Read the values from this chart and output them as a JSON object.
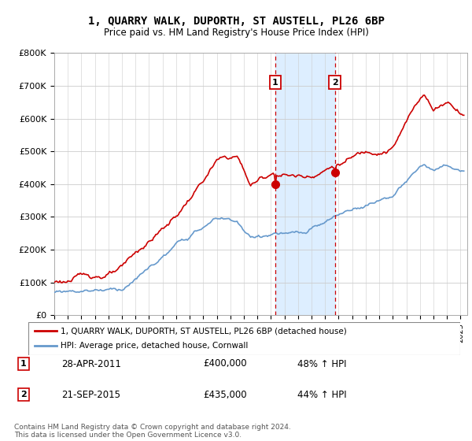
{
  "title": "1, QUARRY WALK, DUPORTH, ST AUSTELL, PL26 6BP",
  "subtitle": "Price paid vs. HM Land Registry's House Price Index (HPI)",
  "ylabel_ticks": [
    "£0",
    "£100K",
    "£200K",
    "£300K",
    "£400K",
    "£500K",
    "£600K",
    "£700K",
    "£800K"
  ],
  "ylim": [
    0,
    800000
  ],
  "xlim_start": 1995.0,
  "xlim_end": 2025.5,
  "legend_line1": "1, QUARRY WALK, DUPORTH, ST AUSTELL, PL26 6BP (detached house)",
  "legend_line2": "HPI: Average price, detached house, Cornwall",
  "annotation1": {
    "label": "1",
    "date": "28-APR-2011",
    "price": "£400,000",
    "pct": "48% ↑ HPI",
    "x_year": 2011.32,
    "y_val": 400000
  },
  "annotation2": {
    "label": "2",
    "date": "21-SEP-2015",
    "price": "£435,000",
    "pct": "44% ↑ HPI",
    "x_year": 2015.72,
    "y_val": 435000
  },
  "vline1_x": 2011.32,
  "vline2_x": 2015.72,
  "shade_start": 2011.32,
  "shade_end": 2015.72,
  "footer": "Contains HM Land Registry data © Crown copyright and database right 2024.\nThis data is licensed under the Open Government Licence v3.0.",
  "red_color": "#cc0000",
  "blue_color": "#6699cc",
  "shade_color": "#ddeeff",
  "vline_color": "#cc0000",
  "background_color": "#ffffff",
  "grid_color": "#cccccc"
}
